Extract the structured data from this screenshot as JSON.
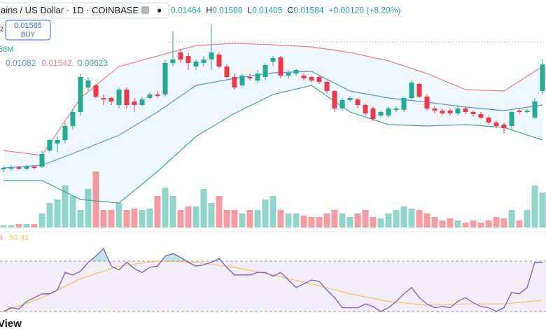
{
  "chart_data": {
    "type": "candlestick",
    "title": "ains / US Dollar · 1D · COINBASE",
    "quote": [
      {
        "value": "0.01464"
      },
      {
        "label": "H",
        "value": "0.01588"
      },
      {
        "label": "L",
        "value": "0.01405"
      },
      {
        "label": "C",
        "value": "0.01584"
      },
      {
        "value": "+0.00120 (+8.20%)"
      }
    ],
    "buy": {
      "prefix": "2",
      "price": "0.01585",
      "label": "BUY"
    },
    "volume_label": "58M",
    "bb_values": [
      "0.01082",
      "0.01542",
      "0.00623"
    ],
    "rsi_header": [
      "5",
      "53.41"
    ],
    "logo": "View",
    "up_color": "#22ab94",
    "down_color": "#f23645",
    "ylim": [
      -0.003,
      0.03
    ],
    "open": [
      0.0058,
      0.0059,
      0.0061,
      0.0059,
      0.0062,
      0.0062,
      0.0085,
      0.0095,
      0.01,
      0.012,
      0.014,
      0.0175,
      0.0178,
      0.016,
      0.016,
      0.015,
      0.0172,
      0.0155,
      0.015,
      0.016,
      0.0165,
      0.0165,
      0.021,
      0.0225,
      0.022,
      0.0205,
      0.021,
      0.0215,
      0.0222,
      0.0205,
      0.019,
      0.0178,
      0.019,
      0.0185,
      0.019,
      0.0212,
      0.0218,
      0.0192,
      0.0195,
      0.0192,
      0.019,
      0.019,
      0.0183,
      0.017,
      0.0145,
      0.0157,
      0.0158,
      0.015,
      0.0145,
      0.0135,
      0.0135,
      0.0143,
      0.0143,
      0.016,
      0.018,
      0.0162,
      0.0145,
      0.0142,
      0.0142,
      0.0138,
      0.0145,
      0.014,
      0.0137,
      0.0132,
      0.0125,
      0.0122,
      0.012,
      0.0142,
      0.014,
      0.0132,
      0.017
    ],
    "high": [
      0.0062,
      0.0064,
      0.0063,
      0.0064,
      0.0064,
      0.0085,
      0.0102,
      0.0105,
      0.0125,
      0.0145,
      0.0195,
      0.019,
      0.018,
      0.0165,
      0.0162,
      0.0175,
      0.0175,
      0.016,
      0.0162,
      0.0168,
      0.017,
      0.0215,
      0.0255,
      0.023,
      0.0225,
      0.0215,
      0.022,
      0.0265,
      0.0225,
      0.0208,
      0.0195,
      0.0195,
      0.0195,
      0.02,
      0.021,
      0.022,
      0.022,
      0.02,
      0.0202,
      0.0195,
      0.0192,
      0.0192,
      0.0185,
      0.0172,
      0.016,
      0.0162,
      0.016,
      0.0152,
      0.0148,
      0.0142,
      0.0148,
      0.0148,
      0.0162,
      0.0185,
      0.0182,
      0.0165,
      0.0148,
      0.0145,
      0.0145,
      0.015,
      0.0148,
      0.0142,
      0.014,
      0.0135,
      0.0128,
      0.0125,
      0.0142,
      0.0145,
      0.0145,
      0.016,
      0.0215
    ],
    "low": [
      0.0054,
      0.0056,
      0.0057,
      0.0057,
      0.0058,
      0.006,
      0.0082,
      0.0082,
      0.0095,
      0.0115,
      0.0135,
      0.017,
      0.016,
      0.015,
      0.015,
      0.0145,
      0.0145,
      0.014,
      0.0148,
      0.0158,
      0.016,
      0.0162,
      0.0205,
      0.021,
      0.02,
      0.02,
      0.0205,
      0.02,
      0.0202,
      0.0188,
      0.0172,
      0.0175,
      0.0185,
      0.0182,
      0.0185,
      0.0205,
      0.0188,
      0.0188,
      0.0192,
      0.0185,
      0.0182,
      0.018,
      0.0167,
      0.014,
      0.0142,
      0.0155,
      0.0145,
      0.0135,
      0.0127,
      0.0132,
      0.0132,
      0.014,
      0.014,
      0.0158,
      0.016,
      0.0142,
      0.0138,
      0.0135,
      0.0135,
      0.0135,
      0.0137,
      0.0134,
      0.013,
      0.0122,
      0.0117,
      0.011,
      0.0115,
      0.0137,
      0.0138,
      0.013,
      0.0165
    ],
    "close": [
      0.006,
      0.0061,
      0.0059,
      0.0062,
      0.006,
      0.008,
      0.01,
      0.01,
      0.012,
      0.014,
      0.019,
      0.0185,
      0.0162,
      0.0158,
      0.0155,
      0.0172,
      0.015,
      0.015,
      0.0158,
      0.0165,
      0.0163,
      0.021,
      0.0215,
      0.0215,
      0.021,
      0.0212,
      0.0215,
      0.0225,
      0.0205,
      0.019,
      0.0175,
      0.0192,
      0.0188,
      0.0195,
      0.0207,
      0.0217,
      0.0192,
      0.0196,
      0.02,
      0.0188,
      0.0185,
      0.0183,
      0.017,
      0.0145,
      0.0157,
      0.016,
      0.015,
      0.0138,
      0.013,
      0.014,
      0.0145,
      0.0145,
      0.016,
      0.0182,
      0.0162,
      0.0145,
      0.0142,
      0.0138,
      0.0138,
      0.0145,
      0.014,
      0.0137,
      0.0132,
      0.0125,
      0.012,
      0.0117,
      0.014,
      0.014,
      0.0142,
      0.0155,
      0.0208
    ],
    "bands": {
      "x": [
        0,
        5,
        10,
        15,
        20,
        25,
        30,
        35,
        40,
        45,
        50,
        55,
        60,
        65,
        70
      ],
      "upper": [
        0.0085,
        0.0078,
        0.016,
        0.0205,
        0.022,
        0.0235,
        0.0238,
        0.0236,
        0.0233,
        0.0225,
        0.0213,
        0.0195,
        0.0172,
        0.017,
        0.0205
      ],
      "basis": [
        0.006,
        0.0064,
        0.0085,
        0.0107,
        0.014,
        0.0178,
        0.0188,
        0.0196,
        0.0198,
        0.017,
        0.016,
        0.0154,
        0.0147,
        0.0142,
        0.015
      ],
      "lower": [
        0.0042,
        0.0042,
        0.0015,
        0.001,
        0.0055,
        0.0105,
        0.0138,
        0.0165,
        0.0178,
        0.014,
        0.0122,
        0.012,
        0.0122,
        0.0118,
        0.01
      ],
      "upper_color": "#ef7d85",
      "basis_color": "#5b8def",
      "lower_color": "#3fa98c",
      "fill_color": "#2196f3"
    },
    "volume": {
      "vlim": [
        0,
        100
      ],
      "values": [
        3,
        3,
        5,
        5,
        5,
        20,
        35,
        40,
        60,
        45,
        25,
        55,
        80,
        25,
        25,
        35,
        25,
        27,
        25,
        27,
        45,
        57,
        45,
        25,
        30,
        30,
        55,
        35,
        45,
        25,
        25,
        20,
        25,
        25,
        40,
        45,
        25,
        20,
        20,
        17,
        15,
        15,
        20,
        25,
        20,
        15,
        20,
        25,
        15,
        13,
        20,
        25,
        30,
        27,
        25,
        20,
        15,
        10,
        13,
        10,
        7,
        10,
        7,
        10,
        15,
        13,
        25,
        10,
        25,
        60,
        50
      ]
    },
    "rsi": {
      "ylim": [
        0,
        100
      ],
      "yticks": [
        30,
        70
      ],
      "color": "#7e57c2",
      "ma_color": "#f5c452",
      "values": [
        30,
        33,
        32,
        38,
        41,
        44,
        44,
        47,
        61,
        59,
        62,
        69,
        74,
        80,
        66,
        63,
        69,
        64,
        61,
        65,
        66,
        74,
        76,
        73,
        69,
        66,
        67,
        69,
        72,
        65,
        59,
        59,
        59,
        61,
        61,
        58,
        61,
        55,
        49,
        52,
        55,
        54,
        47,
        41,
        33,
        33,
        33,
        36,
        34,
        30,
        33,
        38,
        44,
        49,
        41,
        36,
        33,
        34,
        33,
        38,
        41,
        37,
        34,
        33,
        30,
        33,
        45,
        44,
        49,
        69,
        69
      ],
      "ma_x": [
        0,
        5,
        10,
        15,
        20,
        25,
        30,
        35,
        40,
        45,
        50,
        55,
        60,
        65,
        70
      ],
      "ma": [
        30,
        41,
        56,
        66,
        70,
        69,
        65,
        59,
        52,
        44,
        38,
        35,
        36,
        36,
        39
      ]
    }
  }
}
